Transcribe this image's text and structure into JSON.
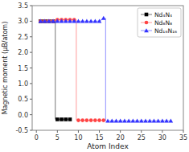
{
  "chart_data": {
    "type": "line",
    "xlabel": "Atom Index",
    "ylabel": "Magnetic moment (μB/atom)",
    "xlim": [
      -1,
      35
    ],
    "ylim": [
      -0.5,
      3.5
    ],
    "xticks": [
      0,
      5,
      10,
      15,
      20,
      25,
      30,
      35
    ],
    "yticks": [
      -0.5,
      {
        "value": 0.0,
        "label": "0.0"
      },
      0.5,
      {
        "value": 1.0,
        "label": "1.0"
      },
      1.5,
      {
        "value": 2.0,
        "label": "2.0"
      },
      2.5,
      {
        "value": 3.0,
        "label": "3.0"
      },
      3.5
    ],
    "grid": false,
    "legend": "upper right",
    "series": [
      {
        "name": "Nd₄N₄",
        "color": "black",
        "marker": "square",
        "x": [
          1,
          2,
          3,
          4,
          null,
          5,
          6,
          7,
          8
        ],
        "values": [
          3.0,
          3.0,
          3.0,
          3.0,
          null,
          -0.15,
          -0.15,
          -0.15,
          -0.15
        ],
        "transition": {
          "x": [
            4.5,
            4.5
          ],
          "values": [
            3.0,
            -0.15
          ]
        }
      },
      {
        "name": "Nd₈N₈",
        "color": "#ff4444",
        "marker": "circle",
        "x": [
          1,
          2,
          3,
          4,
          5,
          6,
          7,
          8,
          9,
          null,
          10,
          11,
          12,
          13,
          14,
          15,
          16
        ],
        "values": [
          3.0,
          3.0,
          3.0,
          3.0,
          3.05,
          3.05,
          3.05,
          3.05,
          3.05,
          null,
          -0.18,
          -0.18,
          -0.18,
          -0.18,
          -0.18,
          -0.18,
          -0.18
        ],
        "transition": {
          "x": [
            9.5,
            9.5
          ],
          "values": [
            3.05,
            -0.18
          ]
        }
      },
      {
        "name": "Nd₁₆N₁₆",
        "color": "#3333ff",
        "marker": "triangle",
        "x": [
          1,
          2,
          3,
          4,
          5,
          6,
          7,
          8,
          9,
          10,
          11,
          12,
          13,
          14,
          15,
          16,
          null,
          17,
          18,
          19,
          20,
          21,
          22,
          23,
          24,
          25,
          26,
          27,
          28,
          29,
          30,
          31,
          32
        ],
        "values": [
          3.0,
          3.0,
          3.0,
          3.0,
          3.0,
          3.0,
          3.0,
          3.0,
          3.0,
          3.0,
          3.0,
          3.0,
          3.0,
          3.0,
          3.0,
          3.1,
          null,
          -0.2,
          -0.2,
          -0.2,
          -0.2,
          -0.2,
          -0.2,
          -0.2,
          -0.2,
          -0.2,
          -0.2,
          -0.2,
          -0.2,
          -0.2,
          -0.2,
          -0.2,
          -0.2
        ],
        "transition": {
          "x": [
            16.5,
            16.5
          ],
          "values": [
            3.1,
            -0.2
          ]
        }
      }
    ]
  }
}
